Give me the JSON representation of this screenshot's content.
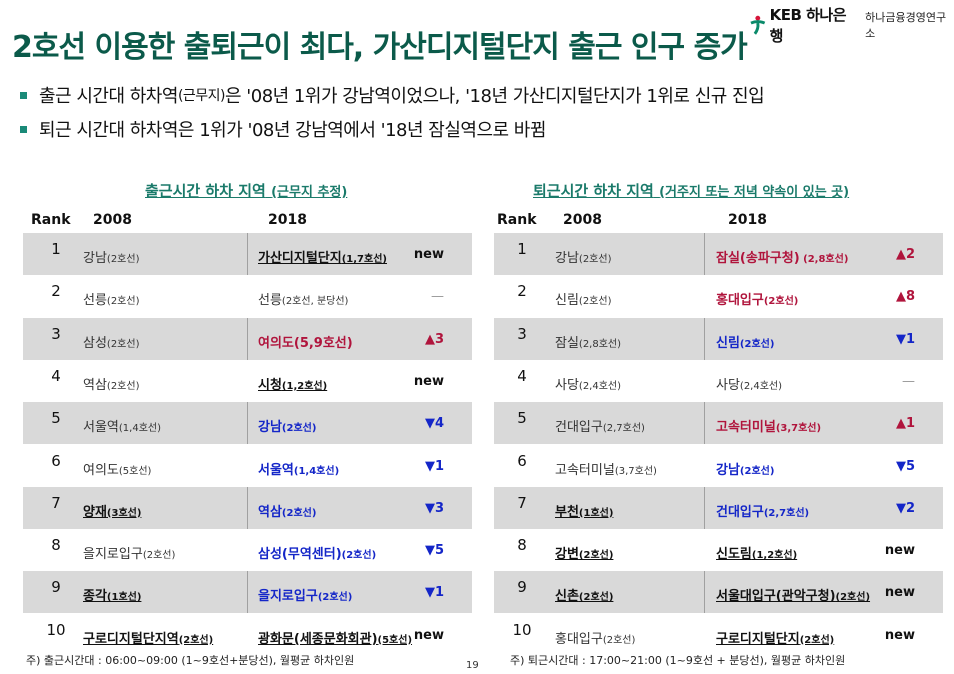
{
  "logo": {
    "brand": "KEB 하나은행",
    "institute": "하나금융경영연구소",
    "accent": "#d6163a",
    "green": "#0a8a6a"
  },
  "title": "2호선 이용한 출퇴근이 최다, 가산디지털단지 출근 인구 증가",
  "bullets": [
    {
      "pre": "출근 시간대 하차역",
      "small": "(근무지)",
      "post": "은 '08년 1위가 강남역이었으나, '18년 가산디지털단지가 1위로 신규 진입"
    },
    {
      "pre": "퇴근 시간대 하차역은 1위가 '08년 강남역에서 '18년 잠실역으로 바뀜",
      "small": "",
      "post": ""
    }
  ],
  "colors": {
    "title": "#0b5a4a",
    "section": "#1a7a6a",
    "up": "#b0143c",
    "down": "#1426c8",
    "row_shade": "#d9d9d9"
  },
  "tables": [
    {
      "title": "출근시간 하차 지역",
      "subtitle": "(근무지 추정)",
      "headers": {
        "rank": "Rank",
        "y2008": "2008",
        "y2018": "2018"
      },
      "rows": [
        {
          "rank": "1",
          "a": {
            "name": "강남",
            "line": "(2호선)",
            "style": "plain"
          },
          "b": {
            "name": "가산디지털단지",
            "line": "(1,7호선)",
            "style": "bold"
          },
          "change": {
            "text": "new",
            "dir": "new"
          }
        },
        {
          "rank": "2",
          "a": {
            "name": "선릉",
            "line": "(2호선)",
            "style": "plain"
          },
          "b": {
            "name": "선릉",
            "line": "(2호선, 분당선)",
            "style": "plain"
          },
          "change": {
            "text": "—",
            "dir": "same"
          }
        },
        {
          "rank": "3",
          "a": {
            "name": "삼성",
            "line": "(2호선)",
            "style": "plain"
          },
          "b": {
            "name": "여의도(5,9호선)",
            "line": "",
            "style": "red"
          },
          "change": {
            "text": "▲3",
            "dir": "up"
          }
        },
        {
          "rank": "4",
          "a": {
            "name": "역삼",
            "line": "(2호선)",
            "style": "plain"
          },
          "b": {
            "name": "시청",
            "line": "(1,2호선)",
            "style": "bold"
          },
          "change": {
            "text": "new",
            "dir": "new"
          }
        },
        {
          "rank": "5",
          "a": {
            "name": "서울역",
            "line": "(1,4호선)",
            "style": "plain"
          },
          "b": {
            "name": "강남",
            "line": "(2호선)",
            "style": "blue"
          },
          "change": {
            "text": "▼4",
            "dir": "down"
          }
        },
        {
          "rank": "6",
          "a": {
            "name": "여의도",
            "line": "(5호선)",
            "style": "plain"
          },
          "b": {
            "name": "서울역",
            "line": "(1,4호선)",
            "style": "blue"
          },
          "change": {
            "text": "▼1",
            "dir": "down"
          }
        },
        {
          "rank": "7",
          "a": {
            "name": "양재",
            "line": "(3호선)",
            "style": "bold"
          },
          "b": {
            "name": "역삼",
            "line": "(2호선)",
            "style": "blue"
          },
          "change": {
            "text": "▼3",
            "dir": "down"
          }
        },
        {
          "rank": "8",
          "a": {
            "name": "을지로입구",
            "line": "(2호선)",
            "style": "plain"
          },
          "b": {
            "name": "삼성(무역센터)",
            "line": "(2호선)",
            "style": "blue"
          },
          "change": {
            "text": "▼5",
            "dir": "down"
          }
        },
        {
          "rank": "9",
          "a": {
            "name": "종각",
            "line": "(1호선)",
            "style": "bold"
          },
          "b": {
            "name": "을지로입구",
            "line": "(2호선)",
            "style": "blue"
          },
          "change": {
            "text": "▼1",
            "dir": "down"
          }
        },
        {
          "rank": "10",
          "a": {
            "name": "구로디지털단지역",
            "line": "(2호선)",
            "style": "bold"
          },
          "b": {
            "name": "광화문(세종문화회관)",
            "line": "(5호선)",
            "style": "bold"
          },
          "change": {
            "text": "new",
            "dir": "new"
          }
        }
      ],
      "note": "주) 출근시간대 : 06:00~09:00  (1~9호선+분당선), 월평균 하차인원"
    },
    {
      "title": "퇴근시간 하차 지역",
      "subtitle": "(거주지 또는 저녁 약속이 있는 곳)",
      "headers": {
        "rank": "Rank",
        "y2008": "2008",
        "y2018": "2018"
      },
      "rows": [
        {
          "rank": "1",
          "a": {
            "name": "강남",
            "line": "(2호선)",
            "style": "plain"
          },
          "b": {
            "name": "잠실(송파구청)",
            "line": " (2,8호선)",
            "style": "red"
          },
          "change": {
            "text": "▲2",
            "dir": "up"
          }
        },
        {
          "rank": "2",
          "a": {
            "name": "신림",
            "line": "(2호선)",
            "style": "plain"
          },
          "b": {
            "name": "홍대입구",
            "line": "(2호선)",
            "style": "red"
          },
          "change": {
            "text": "▲8",
            "dir": "up"
          }
        },
        {
          "rank": "3",
          "a": {
            "name": "잠실",
            "line": "(2,8호선)",
            "style": "plain"
          },
          "b": {
            "name": "신림",
            "line": "(2호선)",
            "style": "blue"
          },
          "change": {
            "text": "▼1",
            "dir": "down"
          }
        },
        {
          "rank": "4",
          "a": {
            "name": "사당",
            "line": "(2,4호선)",
            "style": "plain"
          },
          "b": {
            "name": "사당",
            "line": "(2,4호선)",
            "style": "plain"
          },
          "change": {
            "text": "—",
            "dir": "same"
          }
        },
        {
          "rank": "5",
          "a": {
            "name": "건대입구",
            "line": "(2,7호선)",
            "style": "plain"
          },
          "b": {
            "name": "고속터미널",
            "line": "(3,7호선)",
            "style": "red"
          },
          "change": {
            "text": "▲1",
            "dir": "up"
          }
        },
        {
          "rank": "6",
          "a": {
            "name": "고속터미널",
            "line": "(3,7호선)",
            "style": "plain"
          },
          "b": {
            "name": "강남",
            "line": "(2호선)",
            "style": "blue"
          },
          "change": {
            "text": "▼5",
            "dir": "down"
          }
        },
        {
          "rank": "7",
          "a": {
            "name": "부천",
            "line": "(1호선)",
            "style": "bold"
          },
          "b": {
            "name": "건대입구",
            "line": "(2,7호선)",
            "style": "blue"
          },
          "change": {
            "text": "▼2",
            "dir": "down"
          }
        },
        {
          "rank": "8",
          "a": {
            "name": "강변",
            "line": "(2호선)",
            "style": "bold"
          },
          "b": {
            "name": "신도림",
            "line": "(1,2호선)",
            "style": "bold"
          },
          "change": {
            "text": "new",
            "dir": "new"
          }
        },
        {
          "rank": "9",
          "a": {
            "name": "신촌",
            "line": "(2호선)",
            "style": "bold"
          },
          "b": {
            "name": "서울대입구(관악구청)",
            "line": "(2호선)",
            "style": "bold"
          },
          "change": {
            "text": "new",
            "dir": "new"
          }
        },
        {
          "rank": "10",
          "a": {
            "name": "홍대입구",
            "line": "(2호선)",
            "style": "plain"
          },
          "b": {
            "name": "구로디지털단지",
            "line": "(2호선)",
            "style": "bold"
          },
          "change": {
            "text": "new",
            "dir": "new"
          }
        }
      ],
      "note": "주) 퇴근시간대 : 17:00~21:00 (1~9호선 + 분당선), 월평균 하차인원"
    }
  ],
  "page_number": "19"
}
